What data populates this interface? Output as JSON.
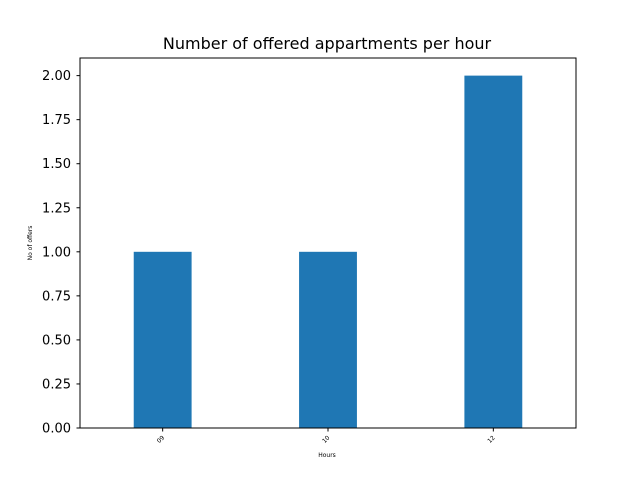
{
  "chart_data": {
    "type": "bar",
    "title": "Number of offered appartments per hour",
    "xlabel": "Hours",
    "ylabel": "No of offers",
    "categories": [
      "09",
      "10",
      "12"
    ],
    "values": [
      1,
      1,
      2
    ],
    "ylim": [
      0,
      2.1
    ],
    "yticks": [
      "0.00",
      "0.25",
      "0.50",
      "0.75",
      "1.00",
      "1.25",
      "1.50",
      "1.75",
      "2.00"
    ],
    "bar_color": "#1f77b4",
    "grid": false,
    "legend": "none"
  }
}
